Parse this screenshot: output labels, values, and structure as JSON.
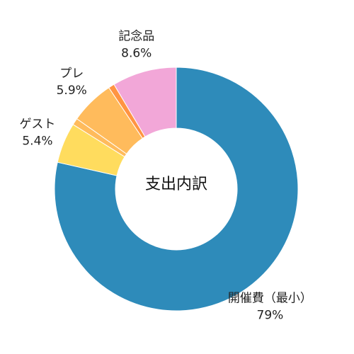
{
  "chart_data": {
    "type": "pie",
    "donut": true,
    "center_label": "支出内訳",
    "slices": [
      {
        "name": "開催費（最小）",
        "value": 79,
        "value_label": "79%",
        "color": "#2e8bba"
      },
      {
        "name": "ゲスト",
        "value": 5.4,
        "value_label": "5.4%",
        "color": "#ffdc5e"
      },
      {
        "name": "",
        "value": 0.9,
        "value_label": "",
        "color": "#ffbb5c"
      },
      {
        "name": "プレ",
        "value": 5.9,
        "value_label": "5.9%",
        "color": "#ffbb5c"
      },
      {
        "name": "",
        "value": 0.8,
        "value_label": "",
        "color": "#ff9443"
      },
      {
        "name": "記念品",
        "value": 8.6,
        "value_label": "8.6%",
        "color": "#f2a7d8"
      }
    ]
  }
}
